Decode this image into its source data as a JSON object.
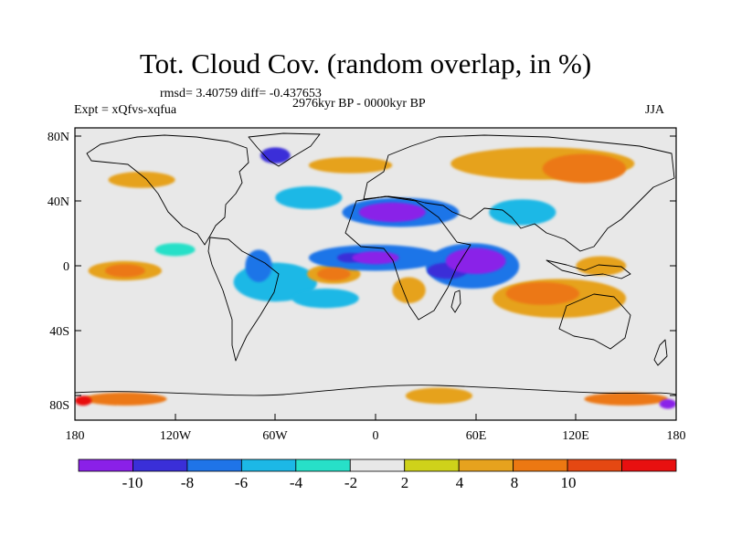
{
  "title": "Tot. Cloud Cov. (random overlap, in %)",
  "stats": "rmsd= 3.40759 diff= -0.437653",
  "period": "2976kyr BP - 0000kyr BP",
  "experiment": "Expt = xQfvs-xqfua",
  "season": "JJA",
  "lat_labels": [
    "80N",
    "40N",
    "0",
    "40S",
    "80S"
  ],
  "lon_labels": [
    "180",
    "120W",
    "60W",
    "0",
    "60E",
    "120E",
    "180"
  ],
  "colorbar": {
    "labels": [
      "-10",
      "-8",
      "-6",
      "-4",
      "-2",
      "2",
      "4",
      "8",
      "10"
    ],
    "colors": [
      "#8a20e8",
      "#3a2fd8",
      "#1f74e8",
      "#1cb8e6",
      "#27e0c8",
      "#e8e8e8",
      "#cfd21a",
      "#e6a21e",
      "#ec7812",
      "#e54812",
      "#e81010"
    ]
  },
  "chart_data": {
    "type": "heatmap",
    "title": "Tot. Cloud Cov. (random overlap, in %)",
    "variable": "Total cloud cover difference",
    "units": "%",
    "xlim": [
      -180,
      180
    ],
    "ylim": [
      -90,
      90
    ],
    "contour_levels": [
      -10,
      -8,
      -6,
      -4,
      -2,
      2,
      4,
      8,
      10
    ],
    "features": [
      {
        "lon": 60,
        "lat": 8,
        "rx": 18,
        "ry": 8,
        "value": -10
      },
      {
        "lon": 43,
        "lat": 2,
        "rx": 12,
        "ry": 5,
        "value": -8
      },
      {
        "lon": 58,
        "lat": 5,
        "rx": 28,
        "ry": 14,
        "value": -6
      },
      {
        "lon": 0,
        "lat": 10,
        "rx": 14,
        "ry": 4,
        "value": -10
      },
      {
        "lon": -15,
        "lat": 10,
        "rx": 8,
        "ry": 3,
        "value": -8
      },
      {
        "lon": 0,
        "lat": 10,
        "rx": 40,
        "ry": 8,
        "value": -6
      },
      {
        "lon": 10,
        "lat": 38,
        "rx": 20,
        "ry": 6,
        "value": -10
      },
      {
        "lon": 15,
        "lat": 38,
        "rx": 35,
        "ry": 9,
        "value": -6
      },
      {
        "lon": -60,
        "lat": 73,
        "rx": 9,
        "ry": 5,
        "value": -8
      },
      {
        "lon": -40,
        "lat": 47,
        "rx": 20,
        "ry": 7,
        "value": -4
      },
      {
        "lon": 88,
        "lat": 38,
        "rx": 20,
        "ry": 8,
        "value": -4
      },
      {
        "lon": -70,
        "lat": 5,
        "rx": 8,
        "ry": 10,
        "value": -6
      },
      {
        "lon": -60,
        "lat": -5,
        "rx": 25,
        "ry": 12,
        "value": -4
      },
      {
        "lon": -30,
        "lat": -15,
        "rx": 20,
        "ry": 6,
        "value": -4
      },
      {
        "lon": -120,
        "lat": 15,
        "rx": 12,
        "ry": 4,
        "value": -2
      },
      {
        "lon": -150,
        "lat": 2,
        "rx": 12,
        "ry": 4,
        "value": 8
      },
      {
        "lon": -150,
        "lat": 2,
        "rx": 22,
        "ry": 6,
        "value": 4
      },
      {
        "lon": -25,
        "lat": 0,
        "rx": 10,
        "ry": 4,
        "value": 8
      },
      {
        "lon": -25,
        "lat": 0,
        "rx": 16,
        "ry": 6,
        "value": 4
      },
      {
        "lon": 100,
        "lat": -12,
        "rx": 22,
        "ry": 7,
        "value": 8
      },
      {
        "lon": 110,
        "lat": -15,
        "rx": 40,
        "ry": 12,
        "value": 4
      },
      {
        "lon": 135,
        "lat": 5,
        "rx": 15,
        "ry": 6,
        "value": 4
      },
      {
        "lon": 125,
        "lat": 65,
        "rx": 25,
        "ry": 9,
        "value": 8
      },
      {
        "lon": 100,
        "lat": 68,
        "rx": 55,
        "ry": 10,
        "value": 4
      },
      {
        "lon": -15,
        "lat": 67,
        "rx": 25,
        "ry": 5,
        "value": 4
      },
      {
        "lon": -140,
        "lat": 58,
        "rx": 20,
        "ry": 5,
        "value": 4
      },
      {
        "lon": 20,
        "lat": -10,
        "rx": 10,
        "ry": 8,
        "value": 4
      },
      {
        "lon": 38,
        "lat": -75,
        "rx": 20,
        "ry": 5,
        "value": 4
      },
      {
        "lon": -150,
        "lat": -77,
        "rx": 25,
        "ry": 4,
        "value": 8
      },
      {
        "lon": 150,
        "lat": -77,
        "rx": 25,
        "ry": 4,
        "value": 8
      },
      {
        "lon": -175,
        "lat": -78,
        "rx": 5,
        "ry": 3,
        "value": 10
      },
      {
        "lon": 175,
        "lat": -80,
        "rx": 5,
        "ry": 3,
        "value": -10
      }
    ]
  }
}
